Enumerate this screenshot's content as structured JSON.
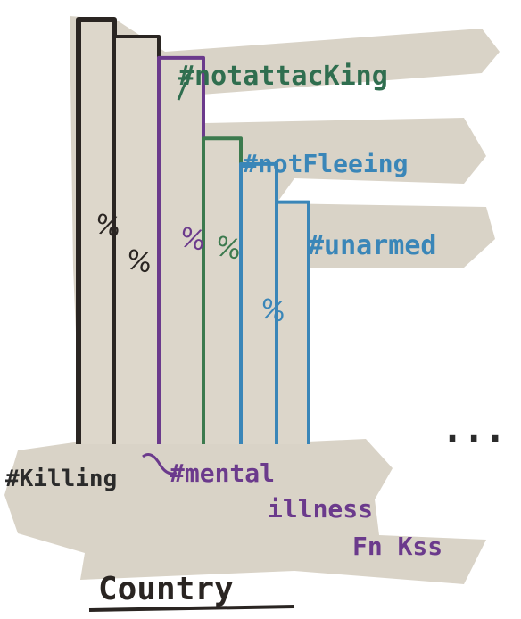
{
  "chart_data": {
    "type": "bar",
    "style": "hand-drawn sketch on paper cutout",
    "xlabel": "Country",
    "ylabel": "",
    "bars": [
      {
        "label": "#Killing",
        "label_color": "#2b2b2b",
        "stroke": "#2a2522",
        "height": 100
      },
      {
        "label": "",
        "label_color": "#2b2b2b",
        "stroke": "#2a2522",
        "height": 96
      },
      {
        "label": "#notattacKing",
        "label_color": "#2f6e4f",
        "stroke": "#6b3a8c",
        "height": 91
      },
      {
        "label": "#notFleeing",
        "label_color": "#3a86b8",
        "stroke": "#3c7a4e",
        "height": 72
      },
      {
        "label": "",
        "label_color": "#3a86b8",
        "stroke": "#3a86b8",
        "height": 66
      },
      {
        "label": "#unarmed",
        "label_color": "#3a86b8",
        "stroke": "#3a86b8",
        "height": 57
      }
    ],
    "bar_marks": [
      "%",
      "%",
      "%",
      "%",
      "",
      "%"
    ],
    "annotations": [
      {
        "text": "#mental",
        "color": "#6b3a8c"
      },
      {
        "text": "illness",
        "color": "#6b3a8c"
      },
      {
        "text": "Fn Kss",
        "color": "#6b3a8c"
      },
      {
        "text": "...",
        "color": "#2b2b2b"
      }
    ],
    "colors": {
      "paper": "#d9d3c7",
      "ink": "#2a2522",
      "purple": "#6b3a8c",
      "green": "#3c7a4e",
      "blue": "#3a86b8"
    }
  }
}
